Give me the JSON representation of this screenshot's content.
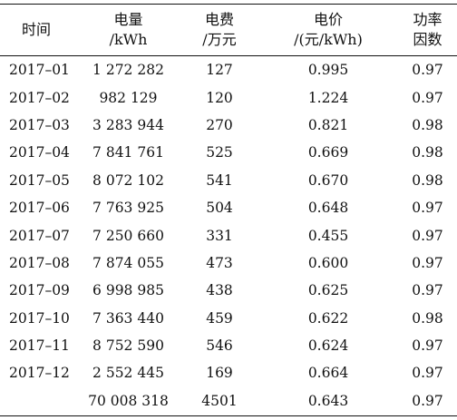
{
  "table": {
    "headers": {
      "month": "时间",
      "energy_line1": "电量",
      "energy_line2": "/kWh",
      "fee_line1": "电费",
      "fee_line2": "/万元",
      "price_line1": "电价",
      "price_line2": "/(元/kWh)",
      "pf_line1": "功率",
      "pf_line2": "因数"
    },
    "rows": [
      {
        "month": "2017–01",
        "energy": "1 272 282",
        "fee": "127",
        "price": "0.995",
        "pf": "0.97"
      },
      {
        "month": "2017–02",
        "energy": "982 129",
        "fee": "120",
        "price": "1.224",
        "pf": "0.97"
      },
      {
        "month": "2017–03",
        "energy": "3 283 944",
        "fee": "270",
        "price": "0.821",
        "pf": "0.98"
      },
      {
        "month": "2017–04",
        "energy": "7 841 761",
        "fee": "525",
        "price": "0.669",
        "pf": "0.98"
      },
      {
        "month": "2017–05",
        "energy": "8 072 102",
        "fee": "541",
        "price": "0.670",
        "pf": "0.98"
      },
      {
        "month": "2017–06",
        "energy": "7 763 925",
        "fee": "504",
        "price": "0.648",
        "pf": "0.97"
      },
      {
        "month": "2017–07",
        "energy": "7 250 660",
        "fee": "331",
        "price": "0.455",
        "pf": "0.97"
      },
      {
        "month": "2017–08",
        "energy": "7 874 055",
        "fee": "473",
        "price": "0.600",
        "pf": "0.97"
      },
      {
        "month": "2017–09",
        "energy": "6 998 985",
        "fee": "438",
        "price": "0.625",
        "pf": "0.97"
      },
      {
        "month": "2017–10",
        "energy": "7 363 440",
        "fee": "459",
        "price": "0.622",
        "pf": "0.98"
      },
      {
        "month": "2017–11",
        "energy": "8 752 590",
        "fee": "546",
        "price": "0.624",
        "pf": "0.97"
      },
      {
        "month": "2017–12",
        "energy": "2 552 445",
        "fee": "169",
        "price": "0.664",
        "pf": "0.97"
      },
      {
        "month": "",
        "energy": "70 008 318",
        "fee": "4501",
        "price": "0.643",
        "pf": "0.97"
      }
    ]
  }
}
